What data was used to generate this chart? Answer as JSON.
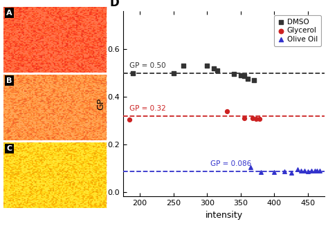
{
  "panel_A_color": "#FF4422",
  "panel_B_color": "#FF8833",
  "panel_C_color": "#FFDD00",
  "dmso_x": [
    190,
    250,
    265,
    300,
    310,
    315,
    340,
    350,
    355,
    360,
    370
  ],
  "dmso_y": [
    0.5,
    0.5,
    0.53,
    0.53,
    0.52,
    0.51,
    0.497,
    0.49,
    0.488,
    0.475,
    0.47
  ],
  "glycerol_x": [
    185,
    330,
    355,
    368,
    373,
    378
  ],
  "glycerol_y": [
    0.305,
    0.34,
    0.31,
    0.31,
    0.308,
    0.307
  ],
  "olive_x": [
    365,
    380,
    400,
    415,
    425,
    435,
    440,
    445,
    450,
    455,
    460,
    463,
    468
  ],
  "olive_y": [
    0.105,
    0.082,
    0.082,
    0.085,
    0.08,
    0.095,
    0.09,
    0.088,
    0.085,
    0.088,
    0.09,
    0.088,
    0.09
  ],
  "dmso_line": 0.5,
  "glycerol_line": 0.32,
  "olive_line": 0.086,
  "xlim": [
    175,
    475
  ],
  "ylim": [
    -0.02,
    0.76
  ],
  "yticks": [
    0.0,
    0.2,
    0.4,
    0.6
  ],
  "xticks": [
    200,
    250,
    300,
    350,
    400,
    450
  ],
  "xlabel": "intensity",
  "ylabel": "GP",
  "dmso_label": "DMSO",
  "glycerol_label": "Glycerol",
  "olive_label": "Olive Oil",
  "dmso_color": "#333333",
  "glycerol_color": "#CC2222",
  "olive_color": "#3333CC",
  "annotation_dmso": "GP = 0.50",
  "annotation_glycerol": "GP = 0.32",
  "annotation_olive": "GP = 0.086",
  "bg_color": "#ffffff"
}
